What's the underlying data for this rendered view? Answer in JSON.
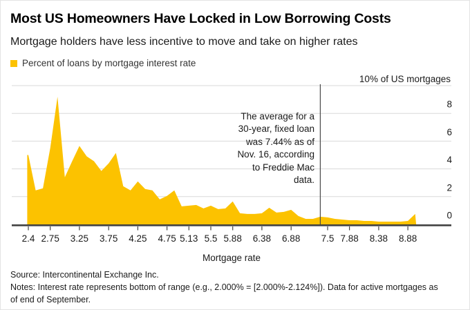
{
  "header": {
    "title": "Most US Homeowners Have Locked in Low Borrowing Costs",
    "subtitle": "Mortgage holders have less incentive to move and take on higher rates"
  },
  "legend": {
    "label": "Percent of loans by mortgage interest rate",
    "swatch_color": "#FCC200"
  },
  "chart_data": {
    "type": "area",
    "title": "Percent of loans by mortgage interest rate",
    "unit_label": "10% of US mortgages",
    "xlabel": "Mortgage rate",
    "x_start": 2.375,
    "x_bin_width_pct": 0.125,
    "categories": [
      2.375,
      2.5,
      2.625,
      2.75,
      2.875,
      3.0,
      3.125,
      3.25,
      3.375,
      3.5,
      3.625,
      3.75,
      3.875,
      4.0,
      4.125,
      4.25,
      4.375,
      4.5,
      4.625,
      4.75,
      4.875,
      5.0,
      5.125,
      5.25,
      5.375,
      5.5,
      5.625,
      5.75,
      5.875,
      6.0,
      6.125,
      6.25,
      6.375,
      6.5,
      6.625,
      6.75,
      6.875,
      7.0,
      7.125,
      7.25,
      7.375,
      7.5,
      7.625,
      7.75,
      7.875,
      8.0,
      8.125,
      8.25,
      8.375,
      8.5,
      8.625,
      8.75,
      8.875,
      9.0
    ],
    "values": [
      5.0,
      2.45,
      2.6,
      5.5,
      9.2,
      3.4,
      4.55,
      5.65,
      4.9,
      4.55,
      3.85,
      4.4,
      5.15,
      2.75,
      2.45,
      3.1,
      2.55,
      2.45,
      1.8,
      2.05,
      2.45,
      1.3,
      1.35,
      1.4,
      1.15,
      1.35,
      1.1,
      1.15,
      1.65,
      0.8,
      0.75,
      0.75,
      0.8,
      1.2,
      0.85,
      0.9,
      1.05,
      0.6,
      0.4,
      0.4,
      0.55,
      0.5,
      0.4,
      0.35,
      0.3,
      0.3,
      0.25,
      0.25,
      0.2,
      0.2,
      0.2,
      0.2,
      0.25,
      0.75
    ],
    "x_tick_labels": [
      "2.4",
      "2.75",
      "3.25",
      "3.75",
      "4.25",
      "4.75",
      "5.13",
      "5.5",
      "5.88",
      "6.38",
      "6.88",
      "7.5",
      "7.88",
      "8.38",
      "8.88"
    ],
    "x_tick_bins": [
      0,
      3,
      7,
      11,
      15,
      19,
      22,
      25,
      28,
      32,
      36,
      41,
      44,
      48,
      52
    ],
    "y_ticks": [
      8,
      6,
      4,
      2,
      0
    ],
    "ylim": [
      0,
      10
    ],
    "grid": true,
    "legend_position": "top-left",
    "annotation": {
      "lines": [
        "The average for a",
        "30-year, fixed loan",
        "was 7.44% as of",
        "Nov. 16, according",
        "to Freddie Mac",
        "data."
      ],
      "text": "The average for a 30-year, fixed loan was 7.44% as of Nov. 16, according to Freddie Mac data.",
      "line_at_rate": 7.44
    },
    "colors": {
      "area": "#FCC200",
      "axis": "#424242",
      "grid": "#d8d8d8",
      "annotation_line": "#4a4a4a",
      "tick": "#424242"
    }
  },
  "footer": {
    "source": "Source: Intercontinental Exchange Inc.",
    "notes": "Notes: Interest rate represents bottom of range (e.g., 2.000% = [2.000%-2.124%]). Data for active mortgages as of end of September."
  }
}
